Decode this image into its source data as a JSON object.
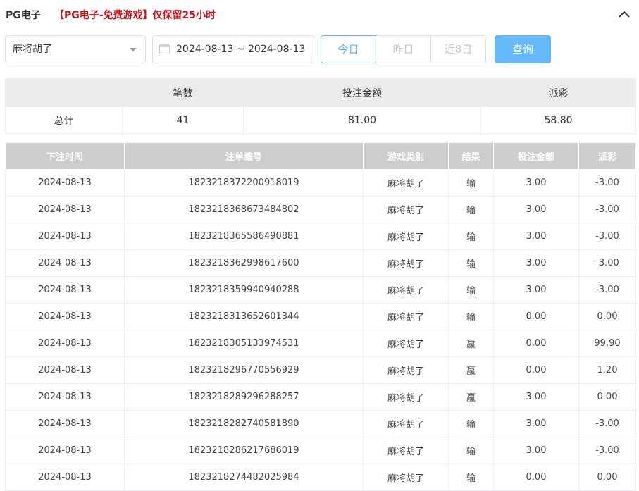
{
  "header": {
    "title": "PG电子",
    "notice": "【PG电子-免费游戏】仅保留25小时"
  },
  "filters": {
    "game_select": "麻将胡了",
    "date_range": "2024-08-13 ~ 2024-08-13",
    "quick_dates": [
      "今日",
      "昨日",
      "近8日"
    ],
    "active_quick_date": "今日",
    "query_label": "查询"
  },
  "summary": {
    "headers": [
      "",
      "笔数",
      "投注金额",
      "派彩"
    ],
    "row": [
      "总计",
      "41",
      "81.00",
      "58.80"
    ]
  },
  "records": {
    "headers": [
      "下注时间",
      "注单编号",
      "游戏类别",
      "结果",
      "投注金额",
      "派彩"
    ],
    "rows": [
      [
        "2024-08-13",
        "1823218372200918019",
        "麻将胡了",
        "输",
        "3.00",
        "-3.00"
      ],
      [
        "2024-08-13",
        "1823218368673484802",
        "麻将胡了",
        "输",
        "3.00",
        "-3.00"
      ],
      [
        "2024-08-13",
        "1823218365586490881",
        "麻将胡了",
        "输",
        "3.00",
        "-3.00"
      ],
      [
        "2024-08-13",
        "1823218362998617600",
        "麻将胡了",
        "输",
        "3.00",
        "-3.00"
      ],
      [
        "2024-08-13",
        "1823218359940940288",
        "麻将胡了",
        "输",
        "3.00",
        "-3.00"
      ],
      [
        "2024-08-13",
        "1823218313652601344",
        "麻将胡了",
        "输",
        "0.00",
        "0.00"
      ],
      [
        "2024-08-13",
        "1823218305133974531",
        "麻将胡了",
        "赢",
        "0.00",
        "99.90"
      ],
      [
        "2024-08-13",
        "1823218296770556929",
        "麻将胡了",
        "赢",
        "0.00",
        "1.20"
      ],
      [
        "2024-08-13",
        "1823218289296288257",
        "麻将胡了",
        "赢",
        "3.00",
        "0.00"
      ],
      [
        "2024-08-13",
        "1823218282740581890",
        "麻将胡了",
        "输",
        "3.00",
        "-3.00"
      ],
      [
        "2024-08-13",
        "1823218286217686019",
        "麻将胡了",
        "输",
        "3.00",
        "-3.00"
      ],
      [
        "2024-08-13",
        "1823218274482025984",
        "麻将胡了",
        "输",
        "0.00",
        "0.00"
      ]
    ]
  },
  "colors": {
    "negative": "#e8394e",
    "accent": "#66b9fa",
    "notice": "#c0141c"
  }
}
